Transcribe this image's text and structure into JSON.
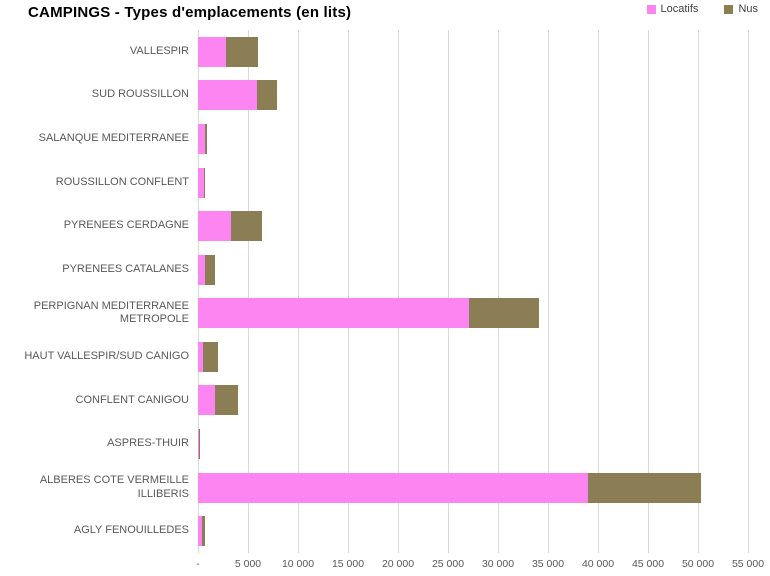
{
  "header": {
    "title": "CAMPINGS - Types d'emplacements (en lits)"
  },
  "legend": [
    {
      "label": "Locatifs",
      "color": "#FC85F2"
    },
    {
      "label": "Nus",
      "color": "#8C7E54"
    }
  ],
  "chart_data": {
    "type": "bar",
    "orientation": "horizontal",
    "stacked": true,
    "title": "CAMPINGS - Types d'emplacements (en lits)",
    "categories": [
      "VALLESPIR",
      "SUD ROUSSILLON",
      "SALANQUE MEDITERRANEE",
      "ROUSSILLON CONFLENT",
      "PYRENEES CERDAGNE",
      "PYRENEES CATALANES",
      "PERPIGNAN MEDITERRANEE METROPOLE",
      "HAUT VALLESPIR/SUD CANIGO",
      "CONFLENT CANIGOU",
      "ASPRES-THUIR",
      "ALBERES COTE VERMEILLE ILLIBERIS",
      "AGLY FENOUILLEDES"
    ],
    "series": [
      {
        "name": "Locatifs",
        "color": "#FC85F2",
        "values": [
          2800,
          5900,
          700,
          600,
          3300,
          700,
          27100,
          500,
          1700,
          100,
          39000,
          400
        ]
      },
      {
        "name": "Nus",
        "color": "#8C7E54",
        "values": [
          3200,
          2000,
          200,
          150,
          3100,
          1000,
          7000,
          1500,
          2300,
          50,
          11300,
          300
        ]
      }
    ],
    "xlabel": "",
    "ylabel": "",
    "xlim": [
      0,
      55000
    ],
    "grid": true,
    "gridline_color": "#d9d9d9",
    "legend_position": "top-right",
    "xticks": {
      "values": [
        0,
        5000,
        10000,
        15000,
        20000,
        25000,
        30000,
        35000,
        40000,
        45000,
        50000,
        55000
      ],
      "labels": [
        "-",
        "5 000",
        "10 000",
        "15 000",
        "20 000",
        "25 000",
        "30 000",
        "35 000",
        "40 000",
        "45 000",
        "50 000",
        "55 000"
      ]
    }
  }
}
